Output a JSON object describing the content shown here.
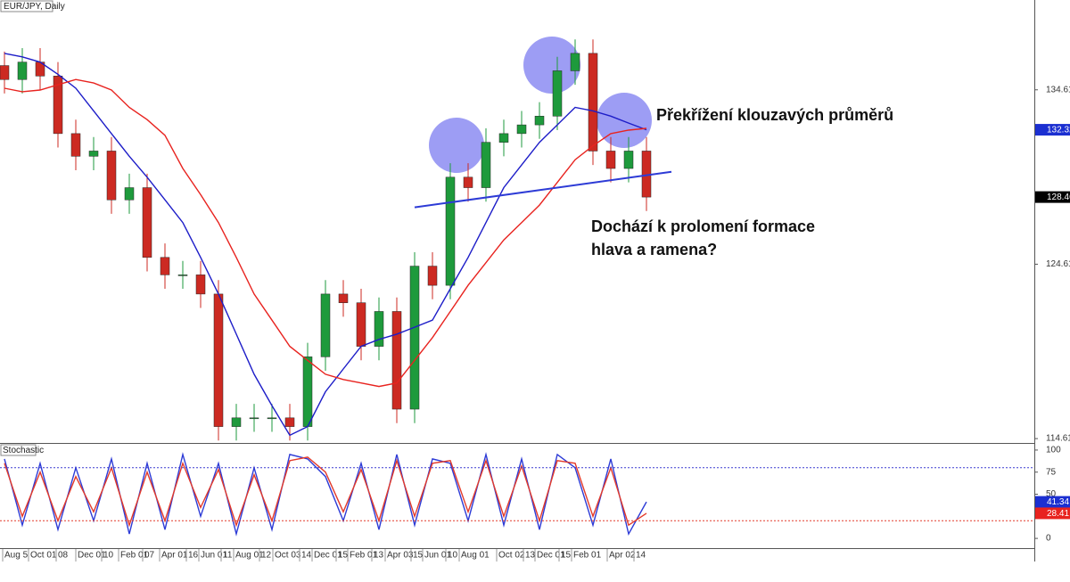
{
  "chart_data": [
    {
      "type": "candlestick",
      "title": "EUR/JPY, Daily",
      "open": [
        136.0,
        135.2,
        136.2,
        135.4,
        132.1,
        130.8,
        131.1,
        128.3,
        129.0,
        125.0,
        124.0,
        124.0,
        122.9,
        115.3,
        115.8,
        115.8,
        115.8,
        115.3,
        119.3,
        122.9,
        122.4,
        119.9,
        121.9,
        116.3,
        124.5,
        123.4,
        129.6,
        129.0,
        131.6,
        132.1,
        132.6,
        133.1,
        135.7,
        136.7,
        131.1,
        130.1,
        131.1
      ],
      "high": [
        136.8,
        137.0,
        137.0,
        136.2,
        132.9,
        131.9,
        131.9,
        129.8,
        129.8,
        125.8,
        124.8,
        124.8,
        123.7,
        116.6,
        116.6,
        116.6,
        116.6,
        120.1,
        123.7,
        123.7,
        123.2,
        122.7,
        122.7,
        125.3,
        125.3,
        130.4,
        130.4,
        132.4,
        132.9,
        133.4,
        133.9,
        136.5,
        137.5,
        137.5,
        131.9,
        131.9,
        131.9
      ],
      "low": [
        134.4,
        134.4,
        134.6,
        131.3,
        130.0,
        130.0,
        127.5,
        127.5,
        124.2,
        123.2,
        123.2,
        122.1,
        114.5,
        114.5,
        115.0,
        115.0,
        114.5,
        114.5,
        118.5,
        121.6,
        119.1,
        119.1,
        115.5,
        115.5,
        122.6,
        122.6,
        128.2,
        128.2,
        130.8,
        131.3,
        131.8,
        132.3,
        134.9,
        130.3,
        129.3,
        129.3,
        127.66
      ],
      "close": [
        135.2,
        136.2,
        135.4,
        132.1,
        130.8,
        131.1,
        128.3,
        129.0,
        125.0,
        124.0,
        124.0,
        122.9,
        115.3,
        115.8,
        115.8,
        115.8,
        115.3,
        119.3,
        122.9,
        122.4,
        119.9,
        121.9,
        116.3,
        124.5,
        123.4,
        129.6,
        129.0,
        131.6,
        132.1,
        132.6,
        133.1,
        135.7,
        136.7,
        131.1,
        130.1,
        131.1,
        128.46
      ],
      "up_color": "#1e9a3c",
      "down_color": "#cc2a22",
      "series": [
        {
          "color": "#1d1dc8",
          "values": [
            136.7,
            136.5,
            136.2,
            135.5,
            134.7,
            133.4,
            132.1,
            130.8,
            129.6,
            128.3,
            127.0,
            125.0,
            122.9,
            120.6,
            118.3,
            116.5,
            114.8,
            115.3,
            117.3,
            118.6,
            119.9,
            120.3,
            120.6,
            121.0,
            121.4,
            123.2,
            125.0,
            127.0,
            129.0,
            130.3,
            131.6,
            132.6,
            133.6,
            133.4,
            133.1,
            132.7,
            132.32
          ]
        },
        {
          "color": "#e8231f",
          "values": [
            134.7,
            134.5,
            134.6,
            134.9,
            135.2,
            135.0,
            134.6,
            133.6,
            132.9,
            132.0,
            130.1,
            128.6,
            127.0,
            125.0,
            122.9,
            121.4,
            119.9,
            119.1,
            118.3,
            118.0,
            117.8,
            117.6,
            117.8,
            119.1,
            120.4,
            121.9,
            123.4,
            124.7,
            126.0,
            127.0,
            128.0,
            129.3,
            130.6,
            131.4,
            132.1,
            132.3,
            132.4
          ]
        }
      ],
      "lines": [
        {
          "x": [
            23,
            37.4
          ],
          "y": [
            127.87,
            129.91
          ],
          "color": "#2d3bd6"
        }
      ],
      "last_value_labels": [
        {
          "value": 132.32,
          "color": "#1b2fd1"
        },
        {
          "value": 128.46,
          "color": "#000000"
        }
      ],
      "xlim": [
        -0.25,
        57.75
      ],
      "ylim": [
        114.36,
        139.76
      ],
      "yticks": [
        114.61,
        124.61,
        134.61
      ],
      "xticks": [
        {
          "value": -0.1,
          "label": "Aug 5"
        },
        {
          "value": 1.35,
          "label": "Oct 01"
        },
        {
          "value": 2.9,
          "label": "08"
        },
        {
          "value": 4.0,
          "label": "Dec 01"
        },
        {
          "value": 5.45,
          "label": "10"
        },
        {
          "value": 6.4,
          "label": "Feb 01"
        },
        {
          "value": 7.75,
          "label": "07"
        },
        {
          "value": 8.7,
          "label": "Apr 01"
        },
        {
          "value": 10.2,
          "label": "16"
        },
        {
          "value": 10.9,
          "label": "Jun 01"
        },
        {
          "value": 12.15,
          "label": "11"
        },
        {
          "value": 12.85,
          "label": "Aug 01"
        },
        {
          "value": 14.3,
          "label": "12"
        },
        {
          "value": 15.05,
          "label": "Oct 03"
        },
        {
          "value": 16.55,
          "label": "14"
        },
        {
          "value": 17.25,
          "label": "Dec 01"
        },
        {
          "value": 18.6,
          "label": "15"
        },
        {
          "value": 19.25,
          "label": "Feb 01"
        },
        {
          "value": 20.6,
          "label": "13"
        },
        {
          "value": 21.35,
          "label": "Apr 03"
        },
        {
          "value": 22.8,
          "label": "15"
        },
        {
          "value": 23.45,
          "label": "Jun 01"
        },
        {
          "value": 24.75,
          "label": "10"
        },
        {
          "value": 25.5,
          "label": "Aug 01"
        },
        {
          "value": 27.6,
          "label": "Oct 02"
        },
        {
          "value": 29.1,
          "label": "13"
        },
        {
          "value": 29.75,
          "label": "Dec 01"
        },
        {
          "value": 31.1,
          "label": "15"
        },
        {
          "value": 31.8,
          "label": "Feb 01"
        },
        {
          "value": 33.8,
          "label": "Apr 02"
        },
        {
          "value": 35.3,
          "label": "14"
        }
      ],
      "annotations": [
        "Překřížení klouzavých průměrů",
        "Dochází k prolomení formace",
        "hlava a ramena?"
      ]
    },
    {
      "type": "line",
      "title": "Stochastic",
      "series": [
        {
          "color": "#2d3bd6",
          "values": [
            90,
            15,
            85,
            10,
            80,
            20,
            90,
            5,
            85,
            10,
            95,
            25,
            85,
            5,
            80,
            10,
            95,
            90,
            70,
            20,
            85,
            10,
            95,
            15,
            90,
            85,
            20,
            95,
            15,
            90,
            10,
            95,
            80,
            15,
            90,
            5,
            41.34
          ]
        },
        {
          "color": "#e33a2a",
          "values": [
            85,
            25,
            75,
            20,
            70,
            30,
            80,
            15,
            75,
            20,
            85,
            35,
            78,
            15,
            72,
            20,
            88,
            92,
            75,
            30,
            78,
            20,
            88,
            25,
            85,
            88,
            30,
            88,
            25,
            82,
            20,
            88,
            85,
            25,
            80,
            15,
            28.41
          ]
        }
      ],
      "hlines": [
        {
          "value": 80,
          "color": "#3b3bd0"
        },
        {
          "value": 20,
          "color": "#e33a2a"
        }
      ],
      "last_value_labels": [
        {
          "value": 41.34,
          "color": "#1b2fd1"
        },
        {
          "value": 28.41,
          "color": "#e8231f"
        }
      ],
      "ylim": [
        -11,
        107
      ],
      "yticks": [
        0,
        50,
        75,
        100
      ]
    }
  ]
}
